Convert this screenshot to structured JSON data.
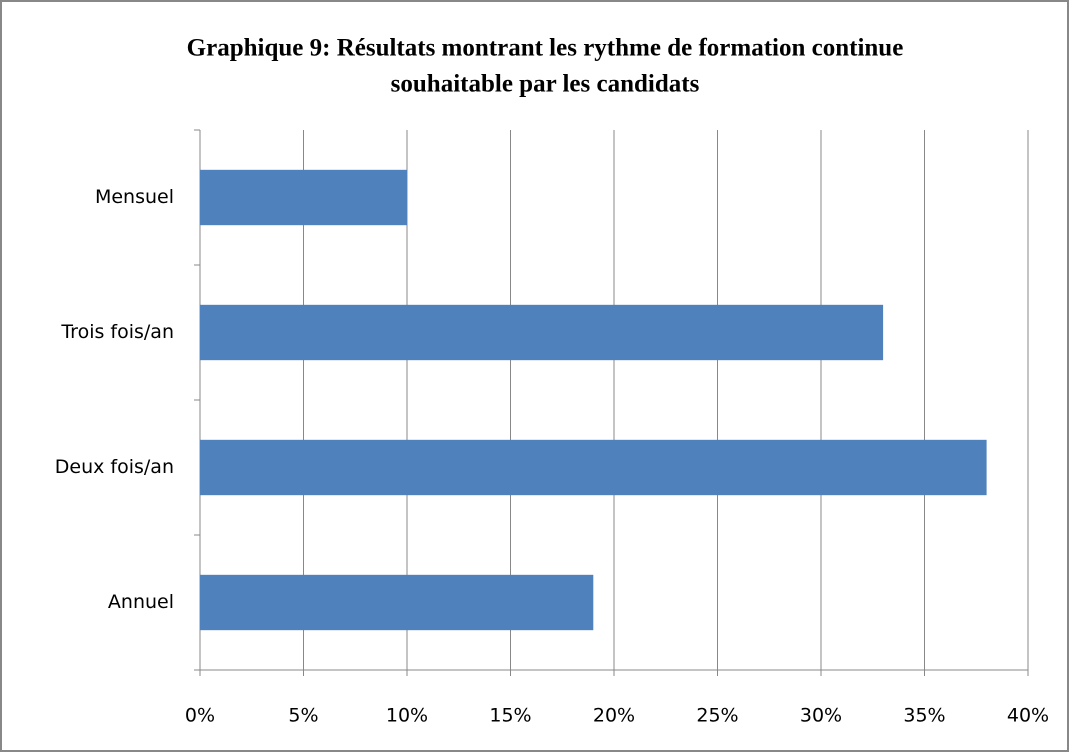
{
  "chart_data": {
    "type": "barh",
    "title": [
      "Graphique 9: Résultats montrant les rythme de formation continue",
      "souhaitable par les candidats"
    ],
    "categories": [
      "Mensuel",
      "Trois fois/an",
      "Deux fois/an",
      "Annuel"
    ],
    "values": [
      10,
      33,
      38,
      19
    ],
    "color": "#4f81bd",
    "xlim": [
      0,
      40
    ],
    "xticks": [
      {
        "value": 0,
        "label": "0%"
      },
      {
        "value": 5,
        "label": "5%"
      },
      {
        "value": 10,
        "label": "10%"
      },
      {
        "value": 15,
        "label": "15%"
      },
      {
        "value": 20,
        "label": "20%"
      },
      {
        "value": 25,
        "label": "25%"
      },
      {
        "value": 30,
        "label": "30%"
      },
      {
        "value": 35,
        "label": "35%"
      },
      {
        "value": 40,
        "label": "40%"
      }
    ],
    "grid": true
  }
}
